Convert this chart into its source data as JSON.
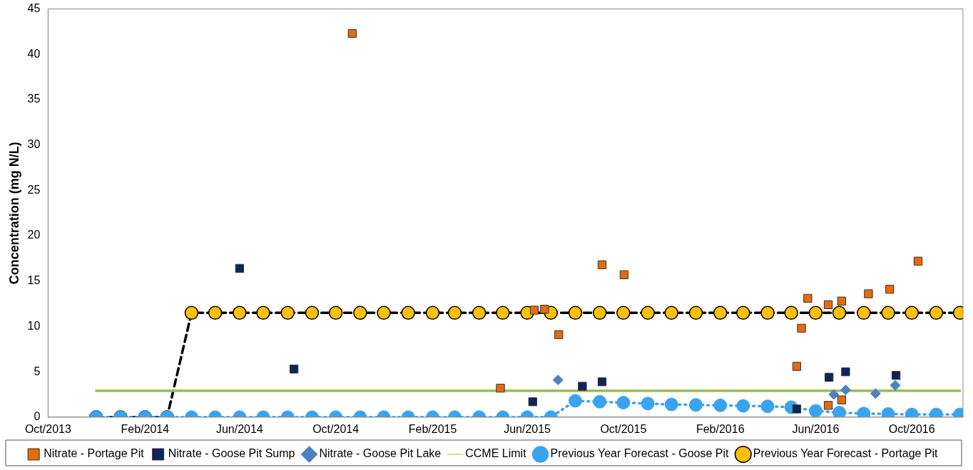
{
  "chart_data": {
    "type": "line",
    "ylabel": "Concentration (mg N/L)",
    "xlim": [
      "2013-10-01",
      "2016-12-05"
    ],
    "xticks": [
      {
        "value": "2013-10-01",
        "label": "Oct/2013"
      },
      {
        "value": "2014-02-01",
        "label": "Feb/2014"
      },
      {
        "value": "2014-06-01",
        "label": "Jun/2014"
      },
      {
        "value": "2014-10-01",
        "label": "Oct/2014"
      },
      {
        "value": "2015-02-01",
        "label": "Feb/2015"
      },
      {
        "value": "2015-06-01",
        "label": "Jun/2015"
      },
      {
        "value": "2015-10-01",
        "label": "Oct/2015"
      },
      {
        "value": "2016-02-01",
        "label": "Feb/2016"
      },
      {
        "value": "2016-06-01",
        "label": "Jun/2016"
      },
      {
        "value": "2016-10-01",
        "label": "Oct/2016"
      }
    ],
    "ylim": [
      0,
      45
    ],
    "yticks": [
      0,
      5,
      10,
      15,
      20,
      25,
      30,
      35,
      40,
      45
    ],
    "grid": false,
    "legend": "bottom",
    "series": [
      {
        "name": "Nitrate - Portage Pit",
        "type": "scatter",
        "marker": "square",
        "color": "#e46c0a",
        "x": [
          "2014-10-22",
          "2015-04-28",
          "2015-06-10",
          "2015-06-23",
          "2015-07-11",
          "2015-09-04",
          "2015-10-02",
          "2016-05-08",
          "2016-05-14",
          "2016-05-22",
          "2016-06-17",
          "2016-06-17",
          "2016-07-04",
          "2016-07-04",
          "2016-08-07",
          "2016-09-03",
          "2016-10-09"
        ],
        "values": [
          42.3,
          3.2,
          11.8,
          11.9,
          9.1,
          16.8,
          15.7,
          5.6,
          9.8,
          13.1,
          12.4,
          1.3,
          12.8,
          1.9,
          13.6,
          14.1,
          17.2
        ]
      },
      {
        "name": "Previous Year Forecast - Portage Pit",
        "type": "line",
        "marker": "circle",
        "line_style": "dashed",
        "color": "#ffc000",
        "x": [
          "2013-12-01",
          "2014-01-01",
          "2014-02-01",
          "2014-03-01",
          "2014-04-01",
          "2014-05-01",
          "2014-06-01",
          "2014-07-01",
          "2014-08-01",
          "2014-09-01",
          "2014-10-01",
          "2014-11-01",
          "2014-12-01",
          "2015-01-01",
          "2015-02-01",
          "2015-03-01",
          "2015-04-01",
          "2015-05-01",
          "2015-06-01",
          "2015-07-01",
          "2015-08-01",
          "2015-09-01",
          "2015-10-01",
          "2015-11-01",
          "2015-12-01",
          "2016-01-01",
          "2016-02-01",
          "2016-03-01",
          "2016-04-01",
          "2016-05-01",
          "2016-06-01",
          "2016-07-01",
          "2016-08-01",
          "2016-09-01",
          "2016-10-01",
          "2016-11-01",
          "2016-12-01"
        ],
        "values": [
          0,
          0,
          0,
          0,
          11.5,
          11.5,
          11.5,
          11.5,
          11.5,
          11.5,
          11.5,
          11.5,
          11.5,
          11.5,
          11.5,
          11.5,
          11.5,
          11.5,
          11.5,
          11.5,
          11.5,
          11.5,
          11.5,
          11.5,
          11.5,
          11.5,
          11.5,
          11.5,
          11.5,
          11.5,
          11.5,
          11.5,
          11.5,
          11.5,
          11.5,
          11.5,
          11.5
        ]
      },
      {
        "name": "Nitrate - Goose Pit Sump",
        "type": "scatter",
        "marker": "square",
        "color": "#10235a",
        "x": [
          "2014-06-01",
          "2014-08-09",
          "2015-06-08",
          "2015-08-10",
          "2015-09-04",
          "2016-05-08",
          "2016-06-18",
          "2016-07-09",
          "2016-09-11"
        ],
        "values": [
          16.4,
          5.3,
          1.7,
          3.4,
          3.9,
          0.9,
          4.4,
          5.0,
          4.6
        ]
      },
      {
        "name": "Previous Year Forecast - Goose Pit",
        "type": "line",
        "marker": "circle",
        "line_style": "dotted",
        "color": "#3aa3f0",
        "x": [
          "2013-12-01",
          "2014-01-01",
          "2014-02-01",
          "2014-03-01",
          "2014-04-01",
          "2014-05-01",
          "2014-06-01",
          "2014-07-01",
          "2014-08-01",
          "2014-09-01",
          "2014-10-01",
          "2014-11-01",
          "2014-12-01",
          "2015-01-01",
          "2015-02-01",
          "2015-03-01",
          "2015-04-01",
          "2015-05-01",
          "2015-06-01",
          "2015-07-01",
          "2015-08-01",
          "2015-09-01",
          "2015-10-01",
          "2015-11-01",
          "2015-12-01",
          "2016-01-01",
          "2016-02-01",
          "2016-03-01",
          "2016-04-01",
          "2016-05-01",
          "2016-06-01",
          "2016-07-01",
          "2016-08-01",
          "2016-09-01",
          "2016-10-01",
          "2016-11-01",
          "2016-12-01"
        ],
        "values": [
          0,
          0,
          0,
          0,
          0,
          0,
          0,
          0,
          0,
          0,
          0,
          0,
          0,
          0,
          0,
          0,
          0,
          0,
          0,
          0,
          1.8,
          1.7,
          1.6,
          1.5,
          1.4,
          1.35,
          1.3,
          1.25,
          1.2,
          1.1,
          0.7,
          0.5,
          0.4,
          0.35,
          0.3,
          0.3,
          0.3
        ]
      },
      {
        "name": "CCME Limit",
        "type": "line",
        "marker": "none",
        "line_style": "solid",
        "color": "#9bbb59",
        "x": [
          "2013-12-01",
          "2016-12-01"
        ],
        "values": [
          2.9,
          2.9
        ]
      },
      {
        "name": "Nitrate - Goose Pit Lake",
        "type": "scatter",
        "marker": "diamond",
        "color": "#4f81bd",
        "x": [
          "2015-07-10",
          "2016-06-24",
          "2016-07-09",
          "2016-08-16",
          "2016-09-10"
        ],
        "values": [
          4.1,
          2.5,
          3.0,
          2.6,
          3.5
        ]
      }
    ]
  }
}
